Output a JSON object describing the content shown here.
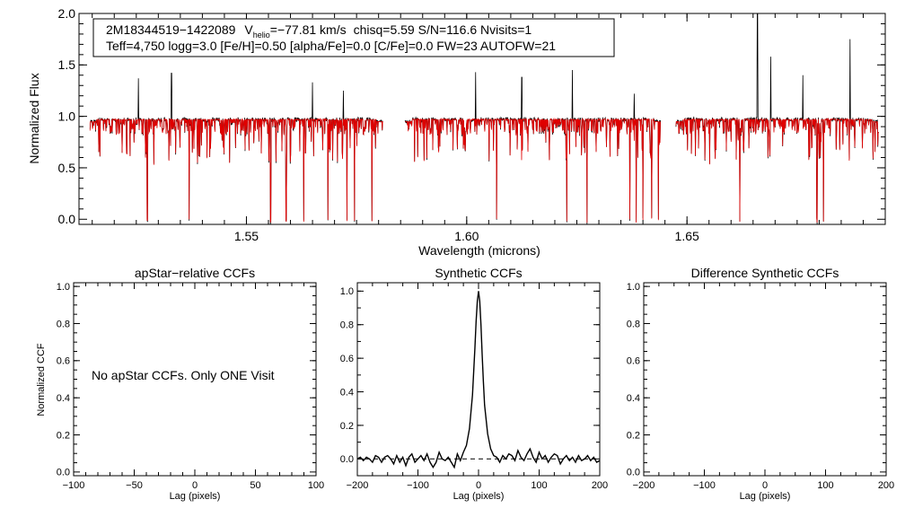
{
  "chart_data": [
    {
      "type": "line",
      "panel": "spectrum",
      "xlabel": "Wavelength (microns)",
      "ylabel": "Normalized Flux",
      "xlim": [
        1.512,
        1.695
      ],
      "ylim": [
        -0.05,
        2.0
      ],
      "xticks": [
        1.55,
        1.6,
        1.65
      ],
      "xtick_labels": [
        "1.55",
        "1.60",
        "1.65"
      ],
      "yticks": [
        0.0,
        0.5,
        1.0,
        1.5,
        2.0
      ],
      "ytick_labels": [
        "0.0",
        "0.5",
        "1.0",
        "1.5",
        "2.0"
      ],
      "chips": [
        [
          1.5145,
          1.581
        ],
        [
          1.586,
          1.644
        ],
        [
          1.6475,
          1.6935
        ]
      ],
      "info": {
        "line1_id": "2M18344519−1422089",
        "line1_v": "V",
        "line1_v_sub": "helio",
        "line1_vval": "=−77.81 km/s",
        "line1_rest": "chisq=5.59  S/N=116.6  Nvisits=1",
        "line2": "Teff=4,750 logg=3.0 [Fe/H]=0.50 [alpha/Fe]=0.0 [C/Fe]=0.0 FW=23 AUTOFW=21"
      },
      "series": [
        {
          "name": "observed",
          "color": "#000000"
        },
        {
          "name": "model",
          "color": "#e00000"
        }
      ],
      "deep_lines": [
        1.5275,
        1.537,
        1.5555,
        1.559,
        1.563,
        1.5685,
        1.5728,
        1.5745,
        1.5785,
        1.6068,
        1.6227,
        1.6273,
        1.637,
        1.6385,
        1.64,
        1.642,
        1.6435,
        1.662,
        1.6795,
        1.681
      ],
      "emission_spikes": [
        {
          "x": 1.5255,
          "y": 1.37
        },
        {
          "x": 1.533,
          "y": 1.42
        },
        {
          "x": 1.565,
          "y": 1.33
        },
        {
          "x": 1.572,
          "y": 1.25
        },
        {
          "x": 1.602,
          "y": 1.43
        },
        {
          "x": 1.6125,
          "y": 1.38
        },
        {
          "x": 1.624,
          "y": 1.45
        },
        {
          "x": 1.638,
          "y": 1.22
        },
        {
          "x": 1.666,
          "y": 2.0
        },
        {
          "x": 1.669,
          "y": 1.58
        },
        {
          "x": 1.6763,
          "y": 1.4
        },
        {
          "x": 1.687,
          "y": 1.75
        }
      ]
    },
    {
      "type": "line",
      "panel": "apstar-ccf",
      "title": "apStar−relative CCFs",
      "xlabel": "Lag (pixels)",
      "ylabel": "Normalized CCF",
      "xlim": [
        -100,
        100
      ],
      "ylim": [
        -0.02,
        1.02
      ],
      "xticks": [
        -100,
        -50,
        0,
        50,
        100
      ],
      "xtick_labels": [
        "−100",
        "−50",
        "0",
        "50",
        "100"
      ],
      "yticks": [
        0.0,
        0.2,
        0.4,
        0.6,
        0.8,
        1.0
      ],
      "ytick_labels": [
        "0.0",
        "0.2",
        "0.4",
        "0.6",
        "0.8",
        "1.0"
      ],
      "annotation": "No apStar CCFs.  Only ONE Visit",
      "series": []
    },
    {
      "type": "line",
      "panel": "synthetic-ccf",
      "title": "Synthetic CCFs",
      "xlabel": "Lag (pixels)",
      "ylabel": "",
      "xlim": [
        -200,
        200
      ],
      "ylim": [
        -0.1,
        1.05
      ],
      "xticks": [
        -200,
        -100,
        0,
        100,
        200
      ],
      "xtick_labels": [
        "−200",
        "−100",
        "0",
        "100",
        "200"
      ],
      "yticks": [
        0.0,
        0.2,
        0.4,
        0.6,
        0.8,
        1.0
      ],
      "ytick_labels": [
        "0.0",
        "0.2",
        "0.4",
        "0.6",
        "0.8",
        "1.0"
      ],
      "zero_line": 0.0,
      "series": [
        {
          "name": "ccf",
          "color": "#000000",
          "x": [
            -200,
            -195,
            -190,
            -185,
            -180,
            -175,
            -170,
            -165,
            -160,
            -155,
            -150,
            -145,
            -140,
            -135,
            -130,
            -125,
            -120,
            -115,
            -110,
            -105,
            -100,
            -95,
            -90,
            -85,
            -80,
            -75,
            -70,
            -65,
            -60,
            -55,
            -50,
            -45,
            -40,
            -35,
            -30,
            -25,
            -20,
            -15,
            -10,
            -8,
            -6,
            -4,
            -2,
            0,
            2,
            4,
            6,
            8,
            10,
            15,
            20,
            25,
            30,
            35,
            40,
            45,
            50,
            55,
            60,
            65,
            70,
            75,
            80,
            85,
            90,
            95,
            100,
            105,
            110,
            115,
            120,
            125,
            130,
            135,
            140,
            145,
            150,
            155,
            160,
            165,
            170,
            175,
            180,
            185,
            190,
            195,
            200
          ],
          "y": [
            0.0,
            0.01,
            -0.01,
            0.01,
            0.0,
            -0.02,
            0.02,
            0.01,
            -0.02,
            0.01,
            0.02,
            0.0,
            -0.03,
            0.02,
            -0.02,
            0.01,
            -0.04,
            0.01,
            0.03,
            -0.02,
            0.0,
            0.02,
            -0.01,
            0.03,
            -0.02,
            -0.05,
            -0.02,
            0.04,
            0.0,
            -0.01,
            0.01,
            -0.02,
            -0.05,
            0.03,
            -0.01,
            0.04,
            0.08,
            0.18,
            0.38,
            0.52,
            0.66,
            0.82,
            0.94,
            1.0,
            0.94,
            0.8,
            0.62,
            0.46,
            0.32,
            0.15,
            0.06,
            0.02,
            0.01,
            -0.02,
            0.02,
            0.0,
            0.03,
            0.02,
            -0.01,
            0.05,
            0.01,
            -0.01,
            0.03,
            0.06,
            0.01,
            -0.02,
            0.04,
            0.0,
            0.02,
            -0.02,
            0.01,
            0.03,
            0.02,
            -0.03,
            0.0,
            0.02,
            -0.01,
            0.01,
            -0.02,
            0.02,
            -0.01,
            0.0,
            0.02,
            -0.01,
            0.01,
            -0.02,
            -0.01
          ]
        }
      ]
    },
    {
      "type": "line",
      "panel": "difference-ccf",
      "title": "Difference Synthetic CCFs",
      "xlabel": "Lag (pixels)",
      "ylabel": "",
      "xlim": [
        -200,
        200
      ],
      "ylim": [
        -0.02,
        1.02
      ],
      "xticks": [
        -200,
        -100,
        0,
        100,
        200
      ],
      "xtick_labels": [
        "−200",
        "−100",
        "0",
        "100",
        "200"
      ],
      "yticks": [
        0.0,
        0.2,
        0.4,
        0.6,
        0.8,
        1.0
      ],
      "ytick_labels": [
        "0.0",
        "0.2",
        "0.4",
        "0.6",
        "0.8",
        "1.0"
      ],
      "series": []
    }
  ]
}
